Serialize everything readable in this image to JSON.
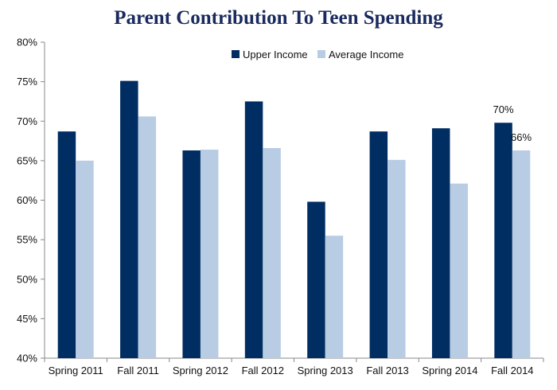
{
  "chart_data": {
    "type": "bar",
    "title": "Parent Contribution To Teen Spending",
    "categories": [
      "Spring 2011",
      "Fall 2011",
      "Spring 2012",
      "Fall 2012",
      "Spring 2013",
      "Fall 2013",
      "Spring 2014",
      "Fall 2014"
    ],
    "series": [
      {
        "name": "Upper Income",
        "color": "#002d62",
        "values": [
          68.7,
          75.1,
          66.3,
          72.5,
          59.8,
          68.7,
          69.1,
          69.8
        ]
      },
      {
        "name": "Average Income",
        "color": "#b8cce4",
        "values": [
          65.0,
          70.6,
          66.4,
          66.6,
          55.5,
          65.1,
          62.1,
          66.3
        ]
      }
    ],
    "ylim": [
      40,
      80
    ],
    "yticks": [
      40,
      45,
      50,
      55,
      60,
      65,
      70,
      75,
      80
    ],
    "ytick_labels": [
      "40%",
      "45%",
      "50%",
      "55%",
      "60%",
      "65%",
      "70%",
      "75%",
      "80%"
    ],
    "data_labels": [
      {
        "series": 0,
        "category": 7,
        "text": "70%"
      },
      {
        "series": 1,
        "category": 7,
        "text": "66%"
      }
    ],
    "legend_position": "top",
    "grid": false,
    "axis_color": "#888888"
  }
}
